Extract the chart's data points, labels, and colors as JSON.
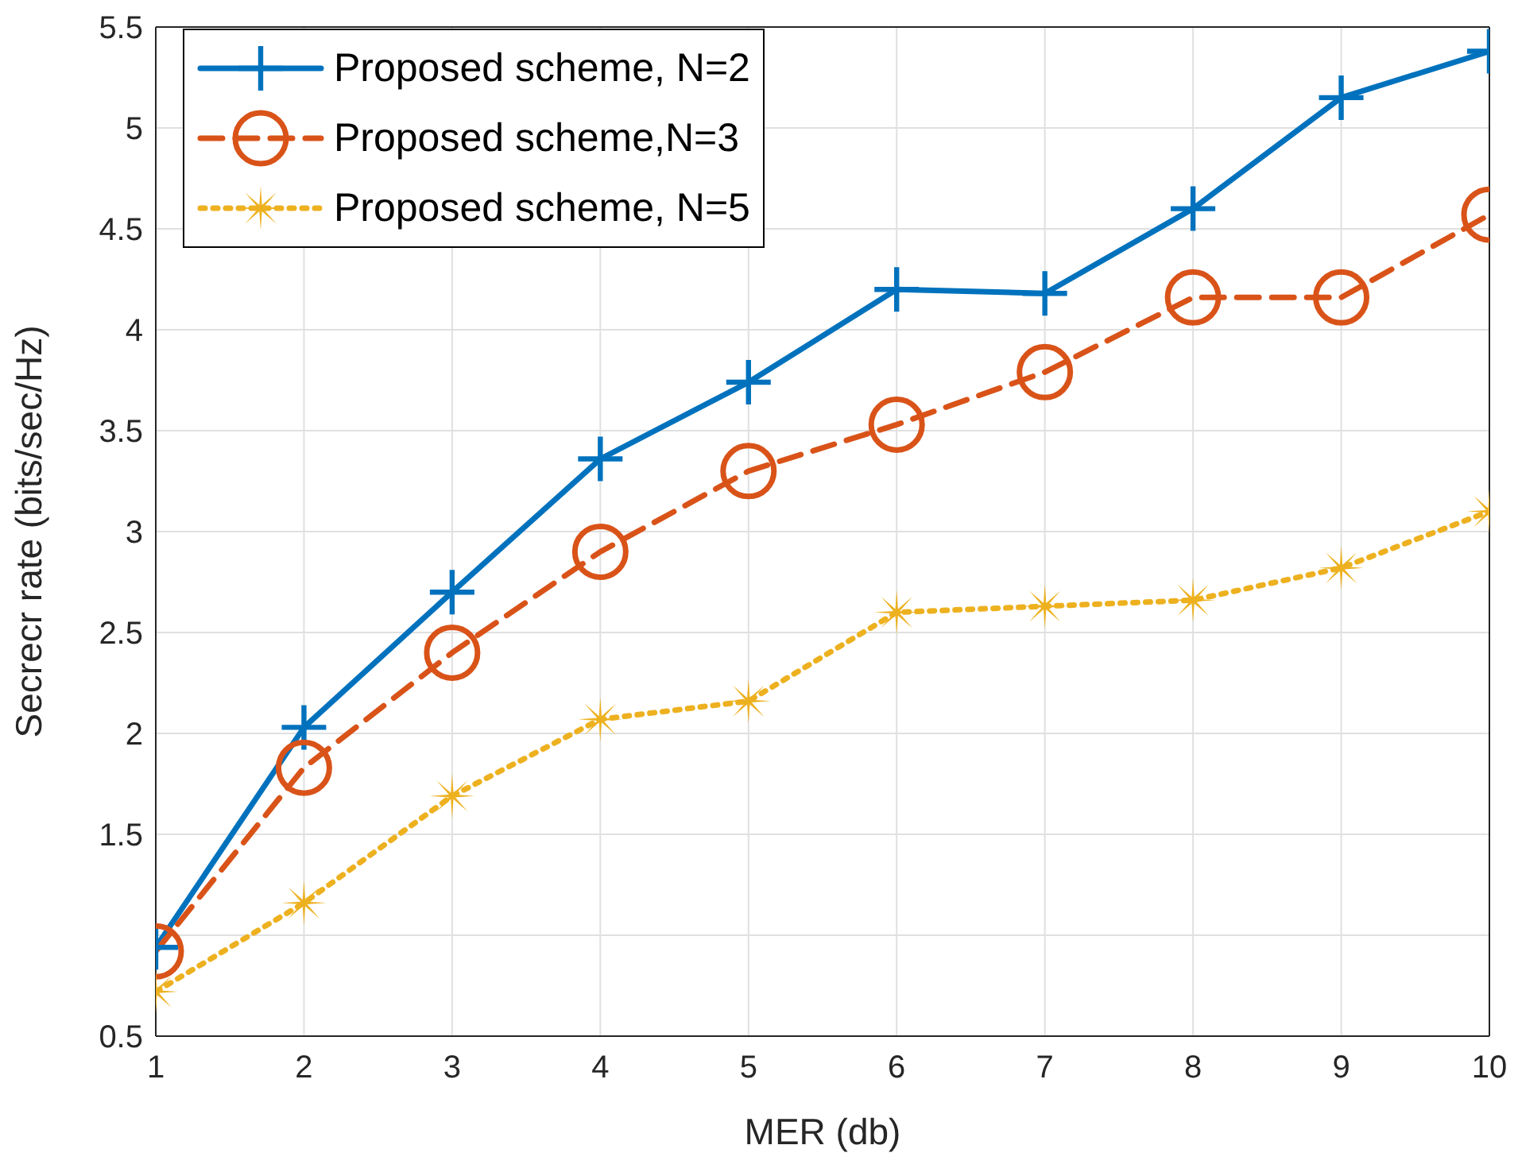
{
  "chart_data": {
    "type": "line",
    "xlabel": "MER (db)",
    "ylabel": "Secrecr rate (bits/sec/Hz)",
    "x": [
      1,
      2,
      3,
      4,
      5,
      6,
      7,
      8,
      9,
      10
    ],
    "series": [
      {
        "name": "Proposed scheme, N=2",
        "color": "#0072bd",
        "marker": "cross",
        "line_style": "solid",
        "values": [
          0.94,
          2.03,
          2.7,
          3.36,
          3.74,
          4.2,
          4.18,
          4.6,
          5.15,
          5.38
        ]
      },
      {
        "name": "Proposed scheme,N=3",
        "color": "#d95319",
        "marker": "circle",
        "line_style": "dashed",
        "values": [
          0.92,
          1.83,
          2.4,
          2.9,
          3.3,
          3.53,
          3.79,
          4.16,
          4.16,
          4.57
        ]
      },
      {
        "name": "Proposed scheme, N=5",
        "color": "#edb120",
        "marker": "star",
        "line_style": "dotted",
        "values": [
          0.72,
          1.16,
          1.69,
          2.07,
          2.16,
          2.6,
          2.63,
          2.66,
          2.82,
          3.1
        ]
      }
    ],
    "xlim": [
      1,
      10
    ],
    "xticks": [
      1,
      2,
      3,
      4,
      5,
      6,
      7,
      8,
      9,
      10
    ],
    "ylim": [
      0.5,
      5.5
    ],
    "yticks": [
      0.5,
      {
        "value": 1,
        "label": null
      },
      1.5,
      2,
      2.5,
      3,
      3.5,
      4,
      4.5,
      5,
      5.5
    ],
    "grid": true,
    "legend": "top left"
  }
}
